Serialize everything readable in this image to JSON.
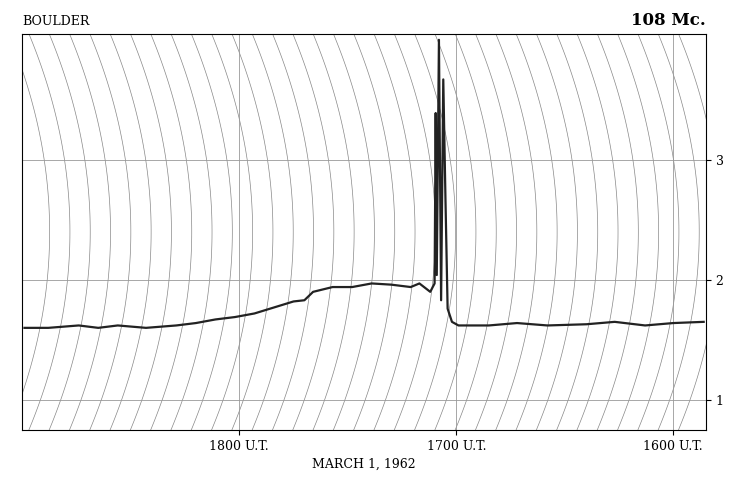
{
  "chart_data": {
    "type": "line",
    "title": "108 Mc.",
    "subtitle": "BOULDER",
    "xlabel": "MARCH 1, 1962",
    "x": [
      15.86,
      16.0,
      16.13,
      16.27,
      16.4,
      16.58,
      16.72,
      16.85,
      16.99,
      17.02,
      17.04,
      17.05,
      17.06,
      17.07,
      17.08,
      17.09,
      17.095,
      17.1,
      17.12,
      17.17,
      17.21,
      17.3,
      17.39,
      17.48,
      17.57,
      17.66,
      17.7,
      17.75,
      17.84,
      17.93,
      18.02,
      18.11,
      18.2,
      18.29,
      18.43,
      18.56,
      18.65,
      18.74,
      18.88,
      18.99
    ],
    "values": [
      1.65,
      1.64,
      1.62,
      1.65,
      1.63,
      1.62,
      1.64,
      1.62,
      1.62,
      1.65,
      1.76,
      2.68,
      3.67,
      1.83,
      4.0,
      2.04,
      3.39,
      1.97,
      1.9,
      1.97,
      1.94,
      1.96,
      1.97,
      1.94,
      1.94,
      1.9,
      1.83,
      1.82,
      1.77,
      1.72,
      1.69,
      1.67,
      1.64,
      1.62,
      1.6,
      1.62,
      1.6,
      1.62,
      1.6,
      1.6
    ],
    "color": "#222222",
    "xlim": [
      19.0,
      15.85
    ],
    "xticks": [
      {
        "value": 18,
        "label": "1800 U.T."
      },
      {
        "value": 17,
        "label": "1700 U.T."
      },
      {
        "value": 16,
        "label": "1600 U.T."
      }
    ],
    "ylim": [
      0.75,
      4.05
    ],
    "yticks": [
      1,
      2,
      3
    ],
    "grid": true
  }
}
